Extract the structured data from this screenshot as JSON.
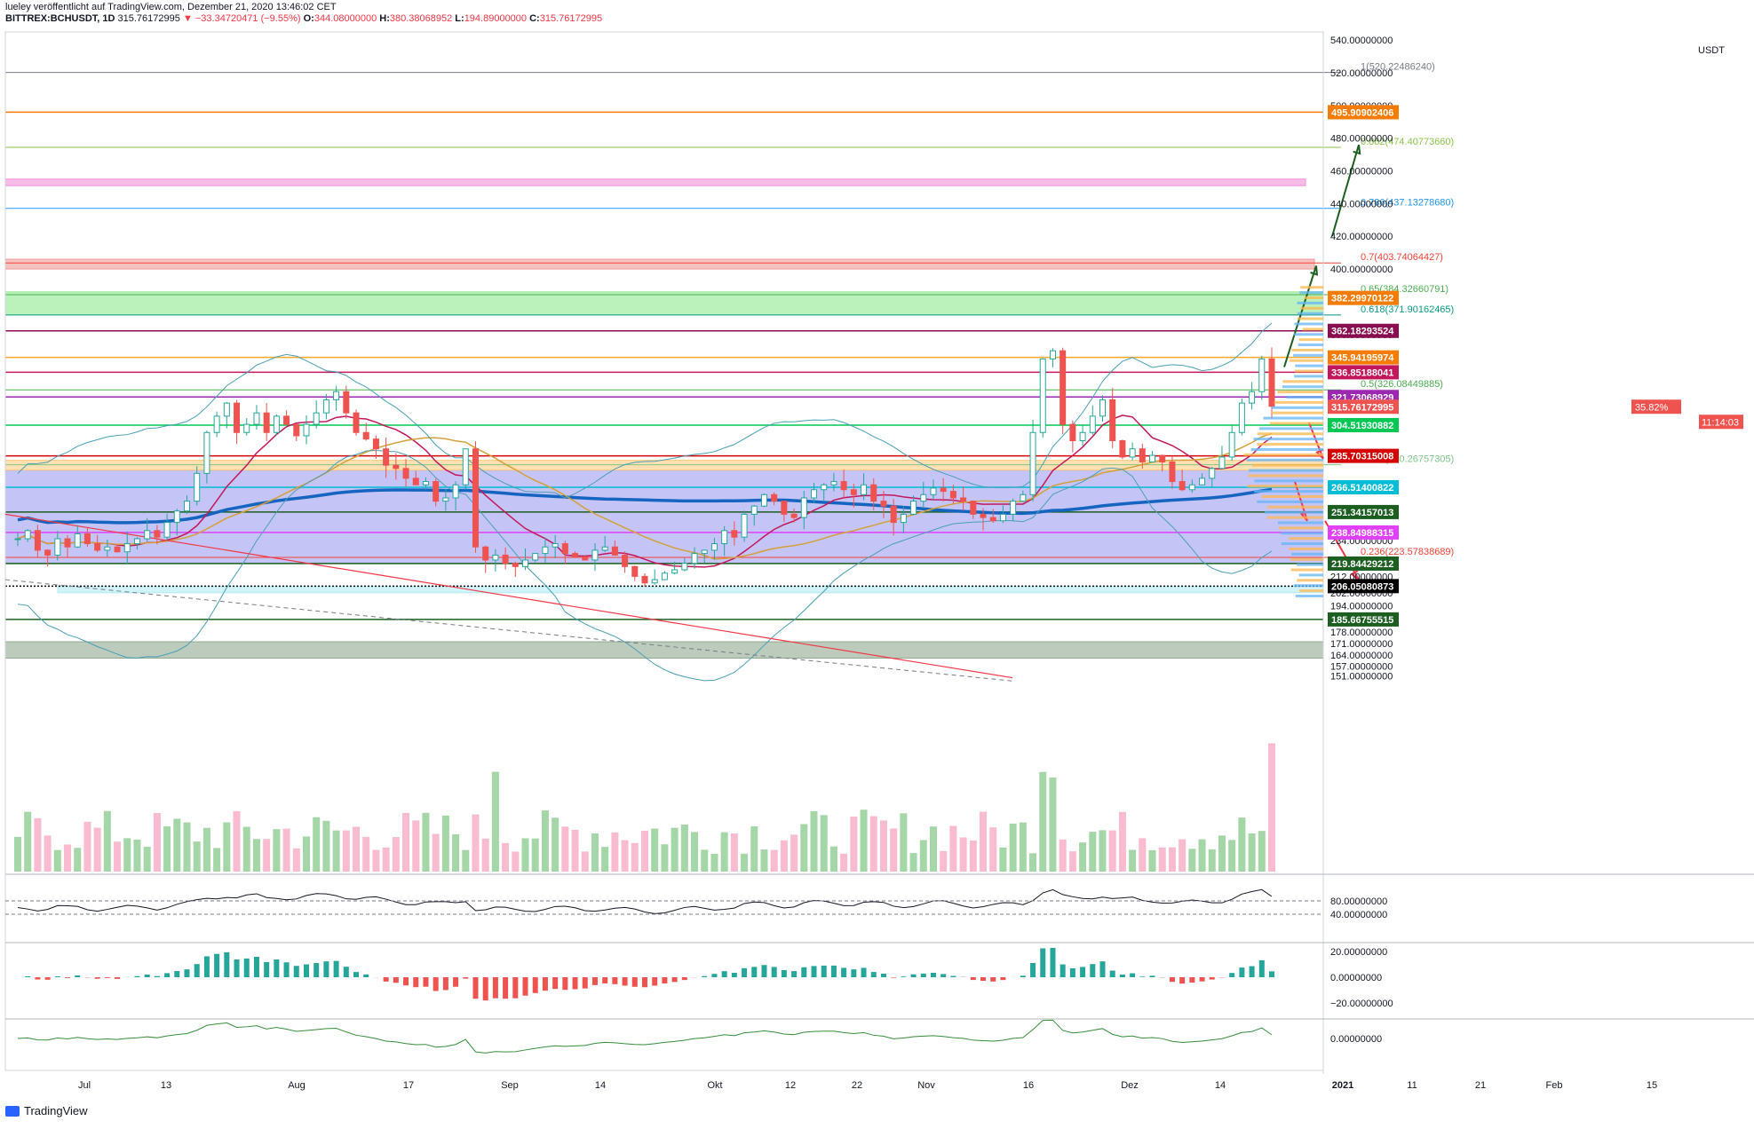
{
  "header": {
    "author_line": "lueley veröffentlicht auf TradingView.com, Dezember 21, 2020 13:46:02 CET",
    "symbol": "BITTREX:BCHUSDT, 1D",
    "last": "315.76172995",
    "change": "▼ −33.34720471 (−9.55%)",
    "o_label": "O:",
    "o": "344.08000000",
    "h_label": "H:",
    "h": "380.38068952",
    "l_label": "L:",
    "l": "194.89000000",
    "c_label": "C:",
    "c": "315.76172995"
  },
  "footer": {
    "brand": "TradingView"
  },
  "chart_data": {
    "type": "line",
    "title": "BITTREX:BCHUSDT, 1D",
    "currency_label": "USDT",
    "ylim": [
      140,
      545
    ],
    "y_ticks": [
      "540.00000000",
      "520.00000000",
      "500.00000000",
      "480.00000000",
      "460.00000000",
      "440.00000000",
      "420.00000000",
      "400.00000000",
      "382.29970122",
      "360.00000000",
      "345.94195974",
      "336.85188041",
      "321.73068929",
      "304.51930882",
      "285.70315008",
      "266.51400822",
      "251.34157013",
      "238.84988315",
      "234.00000000",
      "219.84429212",
      "212.00000000",
      "206.05080873",
      "202.00000000",
      "194.00000000",
      "185.66755515",
      "178.00000000",
      "171.00000000",
      "164.00000000",
      "157.00000000",
      "151.00000000"
    ],
    "x_labels": [
      "Jul",
      "13",
      "Aug",
      "17",
      "Sep",
      "14",
      "Okt",
      "12",
      "22",
      "Nov",
      "16",
      "Dez",
      "14",
      "2021",
      "11",
      "21",
      "Feb",
      "15"
    ],
    "price_tags": [
      {
        "value": "495.90902406",
        "color": "#f57c00"
      },
      {
        "value": "382.29970122",
        "color": "#f57c00"
      },
      {
        "value": "362.18293524",
        "color": "#880e4f"
      },
      {
        "value": "345.94195974",
        "color": "#f57c00"
      },
      {
        "value": "336.85188041",
        "color": "#c2185b"
      },
      {
        "value": "321.73068929",
        "color": "#9c27b0"
      },
      {
        "value": "315.76172995",
        "color": "#ef5350"
      },
      {
        "value": "304.51930882",
        "color": "#00c853"
      },
      {
        "value": "285.70315008",
        "color": "#d50000"
      },
      {
        "value": "266.51400822",
        "color": "#00bcd4"
      },
      {
        "value": "251.34157013",
        "color": "#1b5e20"
      },
      {
        "value": "238.84988315",
        "color": "#e040fb"
      },
      {
        "value": "219.84429212",
        "color": "#1b5e20"
      },
      {
        "value": "206.05080873",
        "color": "#000000"
      },
      {
        "value": "185.66755515",
        "color": "#1b5e20"
      }
    ],
    "badges": [
      "35.82%",
      "11:14:03"
    ],
    "fib_levels": [
      {
        "label": "1(520.22486240)",
        "value": 520.22,
        "color": "#787b86"
      },
      {
        "label": "0.882(474.40773660)",
        "value": 474.41,
        "color": "#8bc34a"
      },
      {
        "label": "0.786(437.13278680)",
        "value": 437.13,
        "color": "#2196f3"
      },
      {
        "label": "0.7(403.74064427)",
        "value": 403.74,
        "color": "#f44336"
      },
      {
        "label": "0.65(384.32660791)",
        "value": 384.33,
        "color": "#4caf50"
      },
      {
        "label": "0.618(371.90162465)",
        "value": 371.9,
        "color": "#089981"
      },
      {
        "label": "0.5(326.08449885)",
        "value": 326.08,
        "color": "#4caf50"
      },
      {
        "label": "0.382(280.26757305)",
        "value": 280.27,
        "color": "#81c784"
      },
      {
        "label": "0.236(223.57838689)",
        "value": 223.58,
        "color": "#f44336"
      }
    ],
    "horizontal_levels": [
      {
        "value": 495.91,
        "color": "#f57c00"
      },
      {
        "value": 362.18,
        "color": "#880e4f"
      },
      {
        "value": 345.94,
        "color": "#f9a825"
      },
      {
        "value": 336.85,
        "color": "#c2185b"
      },
      {
        "value": 321.73,
        "color": "#9c27b0"
      },
      {
        "value": 304.52,
        "color": "#00c853"
      },
      {
        "value": 285.7,
        "color": "#d50000"
      },
      {
        "value": 266.51,
        "color": "#00bcd4"
      },
      {
        "value": 251.34,
        "color": "#1b5e20"
      },
      {
        "value": 238.85,
        "color": "#e040fb"
      },
      {
        "value": 219.84,
        "color": "#1b5e20"
      },
      {
        "value": 206.05,
        "color": "#000000"
      },
      {
        "value": 185.67,
        "color": "#1b5e20"
      }
    ],
    "zones": [
      {
        "from": 451,
        "to": 455,
        "color": "#f48fd8"
      },
      {
        "from": 400,
        "to": 406,
        "color": "#ef9a9a"
      },
      {
        "from": 372,
        "to": 386,
        "color": "#8ee88e"
      },
      {
        "from": 220,
        "to": 277,
        "color": "#9c9cf0"
      },
      {
        "from": 277,
        "to": 283,
        "color": "#ffcc80"
      },
      {
        "from": 202,
        "to": 206,
        "color": "#b2ebf2"
      },
      {
        "from": 162,
        "to": 172,
        "color": "#8fa88f"
      }
    ],
    "rsi_ticks": [
      "80.00000000",
      "40.00000000"
    ],
    "macd_ticks": [
      "20.00000000",
      "0.00000000",
      "−20.00000000"
    ],
    "osc_ticks": [
      "0.00000000"
    ],
    "colors": {
      "up": "#26a69a",
      "down": "#ef5350",
      "ma200": "#1565c0",
      "volume_up": "#a5d6a7",
      "volume_down": "#f8bbd0"
    }
  }
}
